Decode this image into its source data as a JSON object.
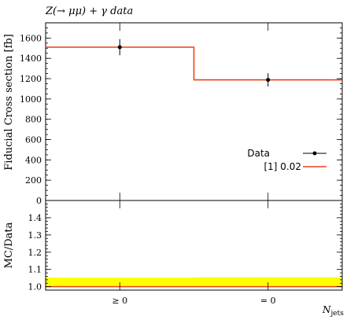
{
  "chart_data": {
    "type": "line",
    "title": "Z(→ μμ) + γ data",
    "xlabel_main": "N",
    "xlabel_sub": "jets",
    "categories": [
      "≥ 0",
      "= 0"
    ],
    "main": {
      "ylabel": "Fiducial Cross section [fb]",
      "ylim": [
        0,
        1750
      ],
      "yticks": [
        0,
        200,
        400,
        600,
        800,
        1000,
        1200,
        1400,
        1600
      ],
      "minor_step": 50,
      "series": [
        {
          "name": "Data",
          "type": "points",
          "values": [
            1510,
            1188
          ],
          "err_low": [
            80,
            65
          ],
          "err_high": [
            80,
            65
          ],
          "color": "#000000"
        },
        {
          "name": "[1] 0.02",
          "type": "step",
          "values": [
            1510,
            1188
          ],
          "color": "#e8441c"
        }
      ],
      "legend_position": "right"
    },
    "ratio": {
      "ylabel": "MC/Data",
      "ylim": [
        0.98,
        1.5
      ],
      "yticks": [
        1.0,
        1.1,
        1.2,
        1.3,
        1.4
      ],
      "minor_step": 0.02,
      "band_low": [
        1.0,
        1.0
      ],
      "band_high": [
        1.053,
        1.055
      ],
      "band_color": "#ffff00",
      "line_value": 1.0,
      "line_color": "#e8441c"
    }
  }
}
